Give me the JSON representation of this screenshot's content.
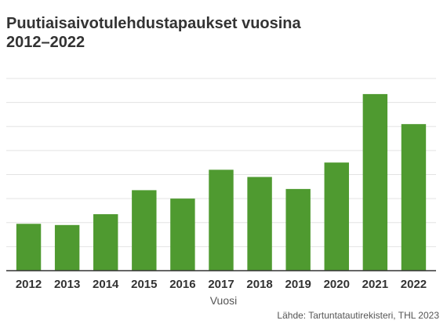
{
  "chart_data": {
    "type": "bar",
    "title_line1": "Puutiaisaivotulehdustapaukset vuosina",
    "title_line2": "2012–2022",
    "categories": [
      "2012",
      "2013",
      "2014",
      "2015",
      "2016",
      "2017",
      "2018",
      "2019",
      "2020",
      "2021",
      "2022"
    ],
    "values": [
      39,
      38,
      47,
      67,
      60,
      84,
      78,
      68,
      90,
      147,
      122
    ],
    "xlabel": "Vuosi",
    "ylim": [
      0,
      160
    ],
    "grid": true,
    "bar_color": "#4f9a30",
    "source": "Lähde: Tartuntatautirekisteri, THL 2023"
  }
}
